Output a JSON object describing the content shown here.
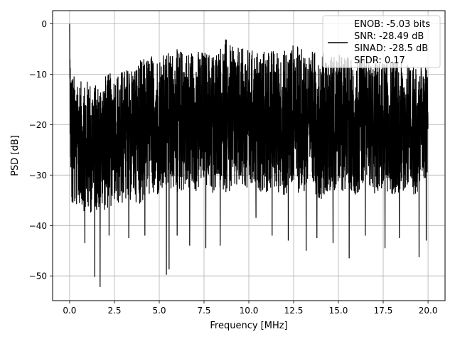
{
  "chart_data": {
    "type": "line",
    "title": "",
    "xlabel": "Frequency [MHz]",
    "ylabel": "PSD [dB]",
    "xlim": [
      -0.95,
      20.95
    ],
    "ylim": [
      -54.9,
      2.6
    ],
    "xticks": [
      0.0,
      2.5,
      5.0,
      7.5,
      10.0,
      12.5,
      15.0,
      17.5,
      20.0
    ],
    "xtick_labels": [
      "0.0",
      "2.5",
      "5.0",
      "7.5",
      "10.0",
      "12.5",
      "15.0",
      "17.5",
      "20.0"
    ],
    "yticks": [
      0,
      -10,
      -20,
      -30,
      -40,
      -50
    ],
    "ytick_labels": [
      "0",
      "−10",
      "−20",
      "−30",
      "−40",
      "−50"
    ],
    "grid": true,
    "legend_position": "top-right",
    "series": [
      {
        "name": "ENOB: -5.03 bits\nSNR: -28.49 dB\nSINAD: -28.5 dB\nSFDR: 0.17",
        "color": "#000000",
        "x_range": [
          0.0,
          20.0
        ],
        "upper_envelope": {
          "x": [
            0.0,
            0.05,
            0.15,
            0.5,
            1.0,
            1.5,
            2.0,
            2.5,
            3.0,
            3.5,
            4.0,
            4.5,
            5.0,
            5.5,
            6.0,
            7.0,
            8.0,
            8.8,
            9.0,
            10.0,
            11.0,
            12.0,
            12.5,
            13.0,
            14.0,
            15.0,
            16.0,
            17.0,
            18.0,
            19.0,
            20.0
          ],
          "y": [
            0.0,
            -8.0,
            -9.5,
            -11.5,
            -11.0,
            -12.0,
            -10.0,
            -9.5,
            -9.0,
            -8.0,
            -7.0,
            -6.0,
            -6.0,
            -5.5,
            -5.0,
            -5.0,
            -5.5,
            -2.5,
            -4.5,
            -5.0,
            -5.0,
            -5.0,
            -3.8,
            -5.0,
            -5.5,
            -6.0,
            -6.5,
            -7.5,
            -7.0,
            -8.0,
            -8.5
          ]
        },
        "lower_envelope": {
          "x": [
            0.0,
            0.1,
            0.5,
            1.0,
            1.5,
            2.0,
            2.5,
            3.0,
            3.5,
            4.0,
            4.5,
            5.0,
            5.5,
            6.0,
            6.5,
            7.0,
            7.5,
            8.0,
            8.5,
            9.0,
            9.5,
            10.0,
            10.5,
            11.0,
            11.5,
            12.0,
            12.5,
            13.0,
            13.5,
            14.0,
            14.5,
            15.0,
            15.5,
            16.0,
            16.5,
            17.0,
            17.5,
            18.0,
            18.5,
            19.0,
            19.5,
            20.0
          ],
          "y": [
            -16.0,
            -38.0,
            -36.0,
            -38.0,
            -37.0,
            -37.0,
            -36.0,
            -36.0,
            -35.0,
            -36.0,
            -34.0,
            -35.0,
            -33.0,
            -34.0,
            -33.0,
            -34.0,
            -32.0,
            -34.0,
            -33.0,
            -34.0,
            -33.0,
            -34.0,
            -33.0,
            -34.0,
            -33.0,
            -35.0,
            -33.0,
            -34.0,
            -33.0,
            -35.0,
            -33.0,
            -34.0,
            -33.0,
            -34.0,
            -33.0,
            -34.0,
            -33.0,
            -35.0,
            -33.0,
            -35.0,
            -33.0,
            -30.0
          ]
        },
        "notable_dips": [
          {
            "x": 0.85,
            "y": -43.5
          },
          {
            "x": 1.4,
            "y": -50.2
          },
          {
            "x": 1.7,
            "y": -52.2
          },
          {
            "x": 2.2,
            "y": -42.0
          },
          {
            "x": 3.3,
            "y": -42.5
          },
          {
            "x": 4.2,
            "y": -42.0
          },
          {
            "x": 5.4,
            "y": -49.8
          },
          {
            "x": 5.55,
            "y": -48.7
          },
          {
            "x": 6.0,
            "y": -42.0
          },
          {
            "x": 6.7,
            "y": -44.0
          },
          {
            "x": 7.6,
            "y": -44.5
          },
          {
            "x": 8.4,
            "y": -44.0
          },
          {
            "x": 10.4,
            "y": -38.5
          },
          {
            "x": 11.3,
            "y": -42.0
          },
          {
            "x": 12.2,
            "y": -43.0
          },
          {
            "x": 13.2,
            "y": -45.0
          },
          {
            "x": 13.8,
            "y": -42.5
          },
          {
            "x": 14.7,
            "y": -43.5
          },
          {
            "x": 15.6,
            "y": -46.5
          },
          {
            "x": 16.5,
            "y": -42.0
          },
          {
            "x": 17.6,
            "y": -44.5
          },
          {
            "x": 18.4,
            "y": -42.5
          },
          {
            "x": 19.5,
            "y": -46.3
          },
          {
            "x": 19.9,
            "y": -43.0
          }
        ]
      }
    ]
  }
}
